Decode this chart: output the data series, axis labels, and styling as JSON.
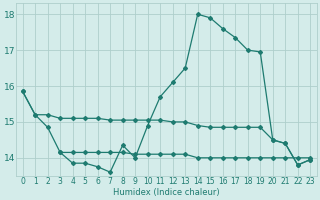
{
  "xlabel": "Humidex (Indice chaleur)",
  "background_color": "#d4ecea",
  "grid_color": "#aecfcc",
  "line_color": "#1e7b70",
  "xlim": [
    -0.5,
    23.5
  ],
  "ylim": [
    13.5,
    18.3
  ],
  "yticks": [
    14,
    15,
    16,
    17,
    18
  ],
  "xticks": [
    0,
    1,
    2,
    3,
    4,
    5,
    6,
    7,
    8,
    9,
    10,
    11,
    12,
    13,
    14,
    15,
    16,
    17,
    18,
    19,
    20,
    21,
    22,
    23
  ],
  "series": [
    {
      "x": [
        0,
        1,
        2,
        3,
        4,
        5,
        6,
        7,
        8,
        9,
        10,
        11,
        12,
        13,
        14,
        15,
        16,
        17,
        18,
        19,
        20,
        21,
        22,
        23
      ],
      "y": [
        15.85,
        15.2,
        14.85,
        14.15,
        13.85,
        13.85,
        13.75,
        13.6,
        14.35,
        14.0,
        14.9,
        15.7,
        16.1,
        16.5,
        18.0,
        17.9,
        17.6,
        17.35,
        17.0,
        16.95,
        14.5,
        14.4,
        13.8,
        13.95
      ]
    },
    {
      "x": [
        0,
        1,
        2,
        3,
        4,
        5,
        6,
        7,
        8,
        9,
        10,
        11,
        12,
        13,
        14,
        15,
        16,
        17,
        18,
        19,
        20,
        21,
        22,
        23
      ],
      "y": [
        15.85,
        15.2,
        15.2,
        15.1,
        15.1,
        15.1,
        15.1,
        15.05,
        15.05,
        15.05,
        15.05,
        15.05,
        15.0,
        15.0,
        14.9,
        14.85,
        14.85,
        14.85,
        14.85,
        14.85,
        14.5,
        14.4,
        13.8,
        13.95
      ]
    },
    {
      "x": [
        0,
        1,
        2,
        3,
        4,
        5,
        6,
        7,
        8,
        9,
        10,
        11,
        12,
        13,
        14,
        15,
        16,
        17,
        18,
        19,
        20,
        21,
        22,
        23
      ],
      "y": [
        null,
        null,
        null,
        14.15,
        14.15,
        14.15,
        14.15,
        14.15,
        14.15,
        14.1,
        14.1,
        14.1,
        14.1,
        14.1,
        14.0,
        14.0,
        14.0,
        14.0,
        14.0,
        14.0,
        14.0,
        14.0,
        14.0,
        14.0
      ]
    }
  ]
}
